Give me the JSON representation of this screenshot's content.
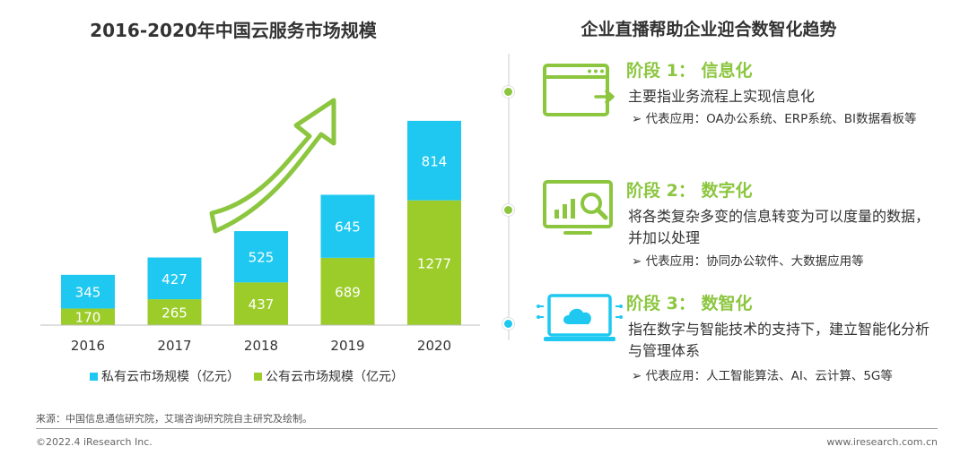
{
  "left_title": "2016-2020年中国云服务市场规模",
  "right_title": "企业直播帮助企业迎合数智化趋势",
  "chart_data": {
    "type": "bar",
    "stacked": true,
    "title": "2016-2020年中国云服务市场规模",
    "categories": [
      "2016",
      "2017",
      "2018",
      "2019",
      "2020"
    ],
    "series": [
      {
        "name": "公有云市场规模（亿元）",
        "color": "#9ccc2a",
        "values": [
          170,
          265,
          437,
          689,
          1277
        ]
      },
      {
        "name": "私有云市场规模（亿元）",
        "color": "#1ec8f0",
        "values": [
          345,
          427,
          525,
          645,
          814
        ]
      }
    ],
    "ylim": [
      0,
      2200
    ],
    "legend_position": "bottom",
    "grid": false
  },
  "legend": {
    "private_label": "私有云市场规模（亿元）",
    "public_label": "公有云市场规模（亿元）",
    "private_color": "#1ec8f0",
    "public_color": "#9ccc2a"
  },
  "stages": [
    {
      "title": "阶段 1： 信息化",
      "desc": "主要指业务流程上实现信息化",
      "app": "➢ 代表应用：OA办公系统、ERP系统、BI数据看板等",
      "dot_color": "#8cc63f",
      "icon": "browser-window-icon"
    },
    {
      "title": "阶段 2： 数字化",
      "desc": "将各类复杂多变的信息转变为可以度量的数据，并加以处理",
      "app": "➢ 代表应用：协同办公软件、大数据应用等",
      "dot_color": "#8cc63f",
      "icon": "data-monitor-icon"
    },
    {
      "title": "阶段 3： 数智化",
      "desc": "指在数字与智能技术的支持下，建立智能化分析与管理体系",
      "app": "➢ 代表应用：人工智能算法、AI、云计算、5G等",
      "dot_color": "#1ec8f0",
      "icon": "cloud-laptop-icon"
    }
  ],
  "source": "来源：中国信息通信研究院，艾瑞咨询研究院自主研究及绘制。",
  "copyright": "©2022.4 iResearch Inc.",
  "website": "www.iresearch.com.cn"
}
